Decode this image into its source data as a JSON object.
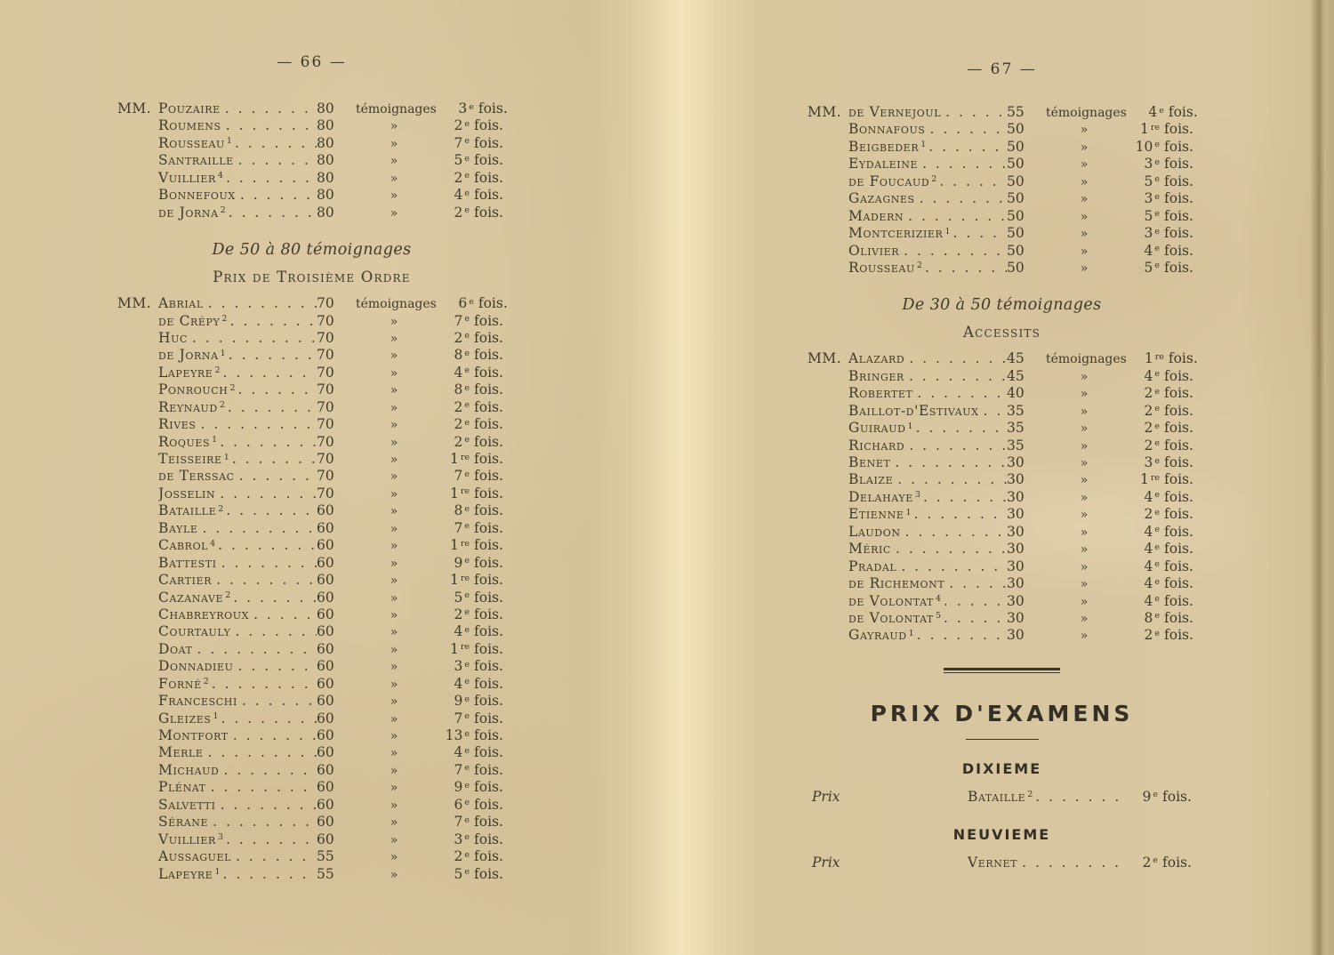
{
  "labels": {
    "fois": "fois."
  },
  "page66": {
    "page_header": "— 66 —",
    "section1_rows": [
      {
        "mm": "MM.",
        "n": "Pouzaire",
        "q": "80",
        "u": "témoignages",
        "t": "3",
        "te": "e"
      },
      {
        "n": "Roumens",
        "q": "80",
        "u": "»",
        "t": "2",
        "te": "e"
      },
      {
        "n": "Rousseau",
        "s": "1",
        "q": "80",
        "u": "»",
        "t": "7",
        "te": "e"
      },
      {
        "n": "Santraille",
        "q": "80",
        "u": "»",
        "t": "5",
        "te": "e"
      },
      {
        "n": "Vuillier",
        "s": "4",
        "q": "80",
        "u": "»",
        "t": "2",
        "te": "e"
      },
      {
        "n": "Bonnefoux",
        "q": "80",
        "u": "»",
        "t": "4",
        "te": "e"
      },
      {
        "n": "de Jorna",
        "s": "2",
        "q": "80",
        "u": "»",
        "t": "2",
        "te": "e"
      }
    ],
    "range_heading": "De 50 à 80 témoignages",
    "order_heading": "Prix de Troisième Ordre",
    "section2_rows": [
      {
        "mm": "MM.",
        "n": "Abrial",
        "q": "70",
        "u": "témoignages",
        "t": "6",
        "te": "e"
      },
      {
        "n": "de Crépy",
        "s": "2",
        "q": "70",
        "u": "»",
        "t": "7",
        "te": "e"
      },
      {
        "n": "Huc",
        "q": "70",
        "u": "»",
        "t": "2",
        "te": "e"
      },
      {
        "n": "de Jorna",
        "s": "1",
        "q": "70",
        "u": "»",
        "t": "8",
        "te": "e"
      },
      {
        "n": "Lapeyre",
        "s": "2",
        "q": "70",
        "u": "»",
        "t": "4",
        "te": "e"
      },
      {
        "n": "Ponrouch",
        "s": "2",
        "q": "70",
        "u": "»",
        "t": "8",
        "te": "e"
      },
      {
        "n": "Reynaud",
        "s": "2",
        "q": "70",
        "u": "»",
        "t": "2",
        "te": "e"
      },
      {
        "n": "Rives",
        "q": "70",
        "u": "»",
        "t": "2",
        "te": "e"
      },
      {
        "n": "Roques",
        "s": "1",
        "q": "70",
        "u": "»",
        "t": "2",
        "te": "e"
      },
      {
        "n": "Teisseire",
        "s": "1",
        "q": "70",
        "u": "»",
        "t": "1",
        "te": "re"
      },
      {
        "n": "de Terssac",
        "q": "70",
        "u": "»",
        "t": "7",
        "te": "e"
      },
      {
        "n": "Josselin",
        "q": "70",
        "u": "»",
        "t": "1",
        "te": "re"
      },
      {
        "n": "Bataille",
        "s": "2",
        "q": "60",
        "u": "»",
        "t": "8",
        "te": "e"
      },
      {
        "n": "Bayle",
        "q": "60",
        "u": "»",
        "t": "7",
        "te": "e"
      },
      {
        "n": "Cabrol",
        "s": "4",
        "q": "60",
        "u": "»",
        "t": "1",
        "te": "re"
      },
      {
        "n": "Battesti",
        "q": "60",
        "u": "»",
        "t": "9",
        "te": "e"
      },
      {
        "n": "Cartier",
        "q": "60",
        "u": "»",
        "t": "1",
        "te": "re"
      },
      {
        "n": "Cazanave",
        "s": "2",
        "q": "60",
        "u": "»",
        "t": "5",
        "te": "e"
      },
      {
        "n": "Chabreyroux",
        "q": "60",
        "u": "»",
        "t": "2",
        "te": "e"
      },
      {
        "n": "Courtauly",
        "q": "60",
        "u": "»",
        "t": "4",
        "te": "e"
      },
      {
        "n": "Doat",
        "q": "60",
        "u": "»",
        "t": "1",
        "te": "re"
      },
      {
        "n": "Donnadieu",
        "q": "60",
        "u": "»",
        "t": "3",
        "te": "e"
      },
      {
        "n": "Forné",
        "s": "2",
        "q": "60",
        "u": "»",
        "t": "4",
        "te": "e"
      },
      {
        "n": "Franceschi",
        "q": "60",
        "u": "»",
        "t": "9",
        "te": "e"
      },
      {
        "n": "Gleizes",
        "s": "1",
        "q": "60",
        "u": "»",
        "t": "7",
        "te": "e"
      },
      {
        "n": "Montfort",
        "q": "60",
        "u": "»",
        "t": "13",
        "te": "e"
      },
      {
        "n": "Merle",
        "q": "60",
        "u": "»",
        "t": "4",
        "te": "e"
      },
      {
        "n": "Michaud",
        "q": "60",
        "u": "»",
        "t": "7",
        "te": "e"
      },
      {
        "n": "Plénat",
        "q": "60",
        "u": "»",
        "t": "9",
        "te": "e"
      },
      {
        "n": "Salvetti",
        "q": "60",
        "u": "»",
        "t": "6",
        "te": "e"
      },
      {
        "n": "Sérane",
        "q": "60",
        "u": "»",
        "t": "7",
        "te": "e"
      },
      {
        "n": "Vuillier",
        "s": "3",
        "q": "60",
        "u": "»",
        "t": "3",
        "te": "e"
      },
      {
        "n": "Aussaguel",
        "q": "55",
        "u": "»",
        "t": "2",
        "te": "e"
      },
      {
        "n": "Lapeyre",
        "s": "1",
        "q": "55",
        "u": "»",
        "t": "5",
        "te": "e"
      }
    ]
  },
  "page67": {
    "page_header": "— 67 —",
    "section1_rows": [
      {
        "mm": "MM.",
        "n": "de Vernejoul",
        "q": "55",
        "u": "témoignages",
        "t": "4",
        "te": "e"
      },
      {
        "n": "Bonnafous",
        "q": "50",
        "u": "»",
        "t": "1",
        "te": "re"
      },
      {
        "n": "Beigbeder",
        "s": "1",
        "q": "50",
        "u": "»",
        "t": "10",
        "te": "e"
      },
      {
        "n": "Eydaleine",
        "q": "50",
        "u": "»",
        "t": "3",
        "te": "e"
      },
      {
        "n": "de Foucaud",
        "s": "2",
        "q": "50",
        "u": "»",
        "t": "5",
        "te": "e"
      },
      {
        "n": "Gazagnes",
        "q": "50",
        "u": "»",
        "t": "3",
        "te": "e"
      },
      {
        "n": "Madern",
        "q": "50",
        "u": "»",
        "t": "5",
        "te": "e"
      },
      {
        "n": "Montcerizier",
        "s": "1",
        "q": "50",
        "u": "»",
        "t": "3",
        "te": "e"
      },
      {
        "n": "Olivier",
        "q": "50",
        "u": "»",
        "t": "4",
        "te": "e"
      },
      {
        "n": "Rousseau",
        "s": "2",
        "q": "50",
        "u": "»",
        "t": "5",
        "te": "e"
      }
    ],
    "range_heading": "De 30 à 50 témoignages",
    "order_heading": "Accessits",
    "section2_rows": [
      {
        "mm": "MM.",
        "n": "Alazard",
        "q": "45",
        "u": "témoignages",
        "t": "1",
        "te": "re"
      },
      {
        "n": "Bringer",
        "q": "45",
        "u": "»",
        "t": "4",
        "te": "e"
      },
      {
        "n": "Robertet",
        "q": "40",
        "u": "»",
        "t": "2",
        "te": "e"
      },
      {
        "n": "Baillot-d'Estivaux",
        "q": "35",
        "u": "»",
        "t": "2",
        "te": "e"
      },
      {
        "n": "Guiraud",
        "s": "1",
        "q": "35",
        "u": "»",
        "t": "2",
        "te": "e"
      },
      {
        "n": "Richard",
        "q": "35",
        "u": "»",
        "t": "2",
        "te": "e"
      },
      {
        "n": "Benet",
        "q": "30",
        "u": "»",
        "t": "3",
        "te": "e"
      },
      {
        "n": "Blaize",
        "q": "30",
        "u": "»",
        "t": "1",
        "te": "re"
      },
      {
        "n": "Delahaye",
        "s": "3",
        "q": "30",
        "u": "»",
        "t": "4",
        "te": "e"
      },
      {
        "n": "Etienne",
        "s": "1",
        "q": "30",
        "u": "»",
        "t": "2",
        "te": "e"
      },
      {
        "n": "Laudon",
        "q": "30",
        "u": "»",
        "t": "4",
        "te": "e"
      },
      {
        "n": "Méric",
        "q": "30",
        "u": "»",
        "t": "4",
        "te": "e"
      },
      {
        "n": "Pradal",
        "q": "30",
        "u": "»",
        "t": "4",
        "te": "e"
      },
      {
        "n": "de Richemont",
        "q": "30",
        "u": "»",
        "t": "4",
        "te": "e"
      },
      {
        "n": "de Volontat",
        "s": "4",
        "q": "30",
        "u": "»",
        "t": "4",
        "te": "e"
      },
      {
        "n": "de Volontat",
        "s": "5",
        "q": "30",
        "u": "»",
        "t": "8",
        "te": "e"
      },
      {
        "n": "Gayraud",
        "s": "1",
        "q": "30",
        "u": "»",
        "t": "2",
        "te": "e"
      }
    ],
    "exams": {
      "title": "PRIX D'EXAMENS",
      "sections": [
        {
          "heading": "DIXIEME",
          "rows": [
            {
              "label": "Prix",
              "n": "Bataille",
              "s": "2",
              "t": "9",
              "te": "e"
            }
          ]
        },
        {
          "heading": "NEUVIEME",
          "rows": [
            {
              "label": "Prix",
              "n": "Vernet",
              "t": "2",
              "te": "e"
            }
          ]
        }
      ]
    }
  }
}
